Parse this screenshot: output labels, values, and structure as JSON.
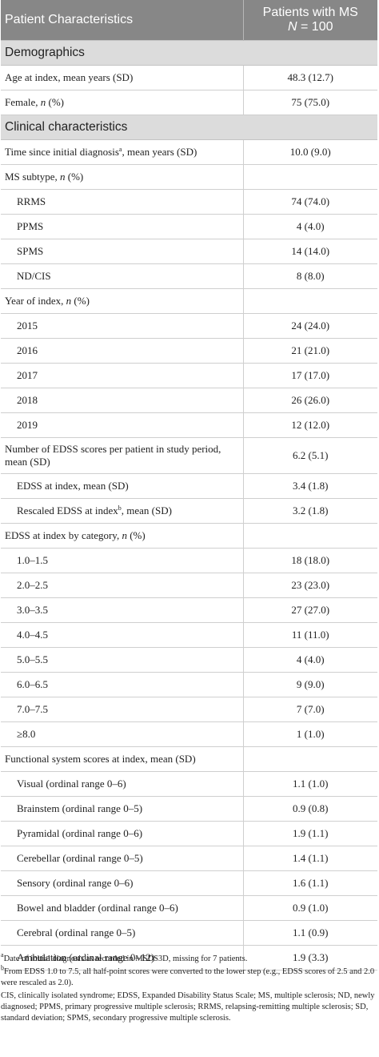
{
  "header": {
    "col1": "Patient Characteristics",
    "col2_line1": "Patients with MS",
    "col2_n": "N",
    "col2_eq": " = 100"
  },
  "sections": {
    "demographics": "Demographics",
    "clinical": "Clinical characteristics"
  },
  "rows": {
    "age": {
      "label": "Age at index, mean years (SD)",
      "value": "48.3 (12.7)"
    },
    "female": {
      "label_a": "Female, ",
      "label_i": "n",
      "label_b": " (%)",
      "value": "75 (75.0)"
    },
    "time_dx": {
      "label_a": "Time since initial diagnosis",
      "sup": "a",
      "label_b": ", mean years (SD)",
      "value": "10.0 (9.0)"
    },
    "ms_subtype": {
      "label_a": "MS subtype, ",
      "label_i": "n",
      "label_b": " (%)",
      "value": ""
    },
    "rrms": {
      "label": "RRMS",
      "value": "74 (74.0)"
    },
    "ppms": {
      "label": "PPMS",
      "value": "4 (4.0)"
    },
    "spms": {
      "label": "SPMS",
      "value": "14 (14.0)"
    },
    "ndcis": {
      "label": "ND/CIS",
      "value": "8 (8.0)"
    },
    "year_index": {
      "label_a": "Year of index, ",
      "label_i": "n",
      "label_b": " (%)",
      "value": ""
    },
    "y2015": {
      "label": "2015",
      "value": "24 (24.0)"
    },
    "y2016": {
      "label": "2016",
      "value": "21 (21.0)"
    },
    "y2017": {
      "label": "2017",
      "value": "17 (17.0)"
    },
    "y2018": {
      "label": "2018",
      "value": "26 (26.0)"
    },
    "y2019": {
      "label": "2019",
      "value": "12 (12.0)"
    },
    "num_edss": {
      "label": "Number of EDSS scores per patient in study period, mean (SD)",
      "value": "6.2 (5.1)"
    },
    "edss_index": {
      "label": "EDSS at index, mean (SD)",
      "value": "3.4 (1.8)"
    },
    "rescaled": {
      "label_a": "Rescaled EDSS at index",
      "sup": "b",
      "label_b": ", mean (SD)",
      "value": "3.2 (1.8)"
    },
    "edss_cat": {
      "label_a": "EDSS at index by category, ",
      "label_i": "n",
      "label_b": " (%)",
      "value": ""
    },
    "c1": {
      "label": "1.0–1.5",
      "value": "18 (18.0)"
    },
    "c2": {
      "label": "2.0–2.5",
      "value": "23 (23.0)"
    },
    "c3": {
      "label": "3.0–3.5",
      "value": "27 (27.0)"
    },
    "c4": {
      "label": "4.0–4.5",
      "value": "11 (11.0)"
    },
    "c5": {
      "label": "5.0–5.5",
      "value": "4 (4.0)"
    },
    "c6": {
      "label": "6.0–6.5",
      "value": "9 (9.0)"
    },
    "c7": {
      "label": "7.0–7.5",
      "value": "7 (7.0)"
    },
    "c8": {
      "label": "≥8.0",
      "value": "1 (1.0)"
    },
    "fss": {
      "label": "Functional system scores at index, mean (SD)",
      "value": ""
    },
    "visual": {
      "label": "Visual (ordinal range 0–6)",
      "value": "1.1 (1.0)"
    },
    "brainstem": {
      "label": "Brainstem (ordinal range 0–5)",
      "value": "0.9 (0.8)"
    },
    "pyramidal": {
      "label": "Pyramidal (ordinal range 0–6)",
      "value": "1.9 (1.1)"
    },
    "cerebellar": {
      "label": "Cerebellar (ordinal range 0–5)",
      "value": "1.4 (1.1)"
    },
    "sensory": {
      "label": "Sensory (ordinal range 0–6)",
      "value": "1.6 (1.1)"
    },
    "bowel": {
      "label": "Bowel and bladder (ordinal range 0–6)",
      "value": "0.9 (1.0)"
    },
    "cerebral": {
      "label": "Cerebral (ordinal range 0–5)",
      "value": "1.1 (0.9)"
    },
    "ambulation": {
      "label": "Ambulation (ordinal range 0–12)",
      "value": "1.9 (3.3)"
    }
  },
  "footnotes": {
    "a_mark": "a",
    "a_text": "Date of initial diagnosis as recorded in MSDS3D, missing for 7 patients.",
    "b_mark": "b",
    "b_text": "From EDSS 1.0 to 7.5, all half-point scores were converted to the lower step (e.g., EDSS scores of 2.5 and 2.0 were rescaled as 2.0).",
    "abbrev": "CIS, clinically isolated syndrome; EDSS, Expanded Disability Status Scale; MS, multiple sclerosis; ND, newly diagnosed; PPMS, primary progressive multiple sclerosis; RRMS, relapsing-remitting multiple sclerosis; SD, standard deviation; SPMS, secondary progressive multiple sclerosis."
  }
}
